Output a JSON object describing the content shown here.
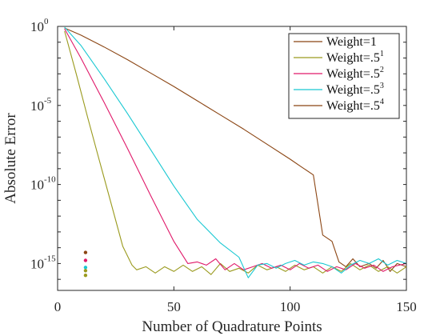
{
  "chart_data": {
    "type": "line",
    "xlabel": "Number of Quadrature Points",
    "ylabel": "Absolute Error",
    "xlim": [
      0,
      150
    ],
    "ylim_log10": [
      -16.7,
      0
    ],
    "y_scale": "log",
    "grid": false,
    "legend_position": "top-right",
    "x_ticks": [
      {
        "value": 0,
        "label": "0"
      },
      {
        "value": 50,
        "label": "50"
      },
      {
        "value": 100,
        "label": "100"
      },
      {
        "value": 150,
        "label": "150"
      }
    ],
    "y_ticks": [
      {
        "value": 0,
        "base": "10",
        "exp": "0"
      },
      {
        "value": -5,
        "base": "10",
        "exp": "-5"
      },
      {
        "value": -10,
        "base": "10",
        "exp": "-10"
      },
      {
        "value": -15,
        "base": "10",
        "exp": "-15"
      }
    ],
    "series": [
      {
        "name": "Weight=1",
        "legend_base": "Weight=1",
        "legend_exp": "",
        "color": "#8B4513",
        "points": [
          [
            3,
            -0.1
          ],
          [
            10,
            -0.55
          ],
          [
            20,
            -1.3
          ],
          [
            30,
            -2.1
          ],
          [
            40,
            -2.95
          ],
          [
            50,
            -3.8
          ],
          [
            60,
            -4.7
          ],
          [
            70,
            -5.6
          ],
          [
            80,
            -6.5
          ],
          [
            90,
            -7.45
          ],
          [
            100,
            -8.4
          ],
          [
            105,
            -8.9
          ],
          [
            110,
            -9.4
          ],
          [
            114,
            -13.2
          ],
          [
            118,
            -13.6
          ],
          [
            121,
            -14.9
          ],
          [
            124,
            -15.2
          ],
          [
            127,
            -14.7
          ],
          [
            130,
            -15.2
          ],
          [
            134,
            -15.0
          ],
          [
            137,
            -15.3
          ],
          [
            140,
            -14.8
          ],
          [
            143,
            -15.5
          ],
          [
            146,
            -15.0
          ],
          [
            150,
            -15.2
          ]
        ]
      },
      {
        "name": "Weight=.5^1",
        "legend_base": "Weight=.5",
        "legend_exp": "1",
        "color": "#9A9A1E",
        "points": [
          [
            3,
            -0.3
          ],
          [
            8,
            -3.0
          ],
          [
            13,
            -5.8
          ],
          [
            18,
            -8.5
          ],
          [
            23,
            -11.2
          ],
          [
            28,
            -13.9
          ],
          [
            32,
            -15.1
          ],
          [
            34,
            -15.4
          ],
          [
            38,
            -15.2
          ],
          [
            42,
            -15.6
          ],
          [
            46,
            -15.2
          ],
          [
            50,
            -15.5
          ],
          [
            54,
            -15.1
          ],
          [
            58,
            -15.5
          ],
          [
            62,
            -15.2
          ],
          [
            66,
            -15.7
          ],
          [
            70,
            -15.0
          ],
          [
            74,
            -15.5
          ],
          [
            78,
            -15.3
          ],
          [
            82,
            -15.6
          ],
          [
            86,
            -15.1
          ],
          [
            90,
            -15.4
          ],
          [
            94,
            -15.2
          ],
          [
            98,
            -15.5
          ],
          [
            102,
            -15.1
          ],
          [
            106,
            -15.4
          ],
          [
            110,
            -15.2
          ],
          [
            114,
            -15.6
          ],
          [
            118,
            -15.2
          ],
          [
            122,
            -15.5
          ],
          [
            126,
            -15.0
          ],
          [
            130,
            -15.4
          ],
          [
            134,
            -15.1
          ],
          [
            138,
            -15.5
          ],
          [
            142,
            -15.2
          ],
          [
            146,
            -15.6
          ],
          [
            150,
            -15.2
          ]
        ]
      },
      {
        "name": "Weight=.5^2",
        "legend_base": "Weight=.5",
        "legend_exp": "2",
        "color": "#E0196A",
        "points": [
          [
            3,
            -0.15
          ],
          [
            10,
            -2.0
          ],
          [
            20,
            -4.8
          ],
          [
            30,
            -7.7
          ],
          [
            40,
            -10.7
          ],
          [
            50,
            -13.6
          ],
          [
            56,
            -15.0
          ],
          [
            60,
            -14.9
          ],
          [
            64,
            -15.1
          ],
          [
            68,
            -14.7
          ],
          [
            72,
            -15.4
          ],
          [
            76,
            -15.0
          ],
          [
            80,
            -15.4
          ],
          [
            84,
            -15.2
          ],
          [
            88,
            -15.0
          ],
          [
            92,
            -15.3
          ],
          [
            96,
            -15.1
          ],
          [
            100,
            -15.4
          ],
          [
            104,
            -15.0
          ],
          [
            108,
            -15.3
          ],
          [
            112,
            -15.1
          ],
          [
            116,
            -15.5
          ],
          [
            120,
            -15.2
          ],
          [
            124,
            -15.4
          ],
          [
            128,
            -15.0
          ],
          [
            132,
            -15.3
          ],
          [
            136,
            -15.1
          ],
          [
            140,
            -15.5
          ],
          [
            144,
            -15.2
          ],
          [
            150,
            -15.0
          ]
        ]
      },
      {
        "name": "Weight=.5^3",
        "legend_base": "Weight=.5",
        "legend_exp": "3",
        "color": "#19C8D2",
        "points": [
          [
            3,
            -0.05
          ],
          [
            10,
            -1.2
          ],
          [
            20,
            -3.3
          ],
          [
            30,
            -5.5
          ],
          [
            40,
            -7.8
          ],
          [
            50,
            -10.1
          ],
          [
            60,
            -12.2
          ],
          [
            70,
            -13.7
          ],
          [
            78,
            -14.6
          ],
          [
            82,
            -15.9
          ],
          [
            86,
            -15.1
          ],
          [
            90,
            -15.0
          ],
          [
            94,
            -15.3
          ],
          [
            98,
            -15.0
          ],
          [
            102,
            -14.8
          ],
          [
            106,
            -15.1
          ],
          [
            110,
            -14.9
          ],
          [
            114,
            -15.0
          ],
          [
            118,
            -15.2
          ],
          [
            122,
            -15.6
          ],
          [
            126,
            -15.1
          ],
          [
            130,
            -14.8
          ],
          [
            134,
            -15.0
          ],
          [
            138,
            -14.7
          ],
          [
            142,
            -15.1
          ],
          [
            146,
            -14.8
          ],
          [
            150,
            -15.0
          ]
        ]
      }
    ],
    "legend_only_series": [
      {
        "legend_base": "Weight=.5",
        "legend_exp": "4",
        "color": "#8B4513"
      }
    ],
    "markers": [
      {
        "x": 12,
        "y": -14.3,
        "color": "#8B4513"
      },
      {
        "x": 12,
        "y": -14.8,
        "color": "#E0196A"
      },
      {
        "x": 12,
        "y": -15.25,
        "color": "#19C8D2"
      },
      {
        "x": 12,
        "y": -15.45,
        "color": "#9A9A1E"
      },
      {
        "x": 12,
        "y": -15.75,
        "color": "#9A9A1E"
      }
    ]
  }
}
